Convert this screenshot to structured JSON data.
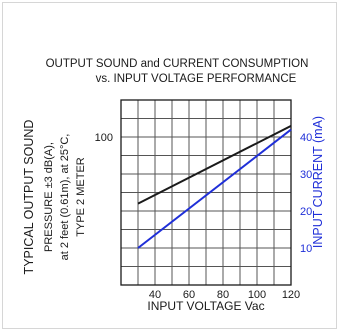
{
  "chart_data": {
    "type": "line",
    "title": "OUTPUT SOUND and CURRENT CONSUMPTION",
    "subtitle": "vs. INPUT VOLTAGE PERFORMANCE",
    "xlabel": "INPUT VOLTAGE Vac",
    "ylabel_lines": [
      "TYPICAL OUTPUT SOUND",
      "PRESSURE ±3 dB(A),",
      "at 2 feet (0.61m), at 25°C,",
      "TYPE 2 METER"
    ],
    "y2label": "INPUT CURRENT (mA)",
    "xlim": [
      20,
      120
    ],
    "ylim": [
      60,
      110
    ],
    "y2lim": [
      0,
      50
    ],
    "x_ticks": [
      40,
      60,
      80,
      100,
      120
    ],
    "y_ticks": [
      70,
      80,
      90,
      100
    ],
    "y_tick_labels": [
      "100"
    ],
    "y2_ticks": [
      10,
      20,
      30,
      40
    ],
    "grid": true,
    "colors": {
      "sound": "#1a1a1a",
      "current": "#1f2fd8",
      "axis": "#1a1a1a"
    },
    "series": [
      {
        "axis": "left",
        "x": [
          30,
          120
        ],
        "y": [
          82,
          103
        ]
      },
      {
        "axis": "right",
        "x": [
          30,
          120
        ],
        "y": [
          10,
          42
        ]
      }
    ]
  }
}
